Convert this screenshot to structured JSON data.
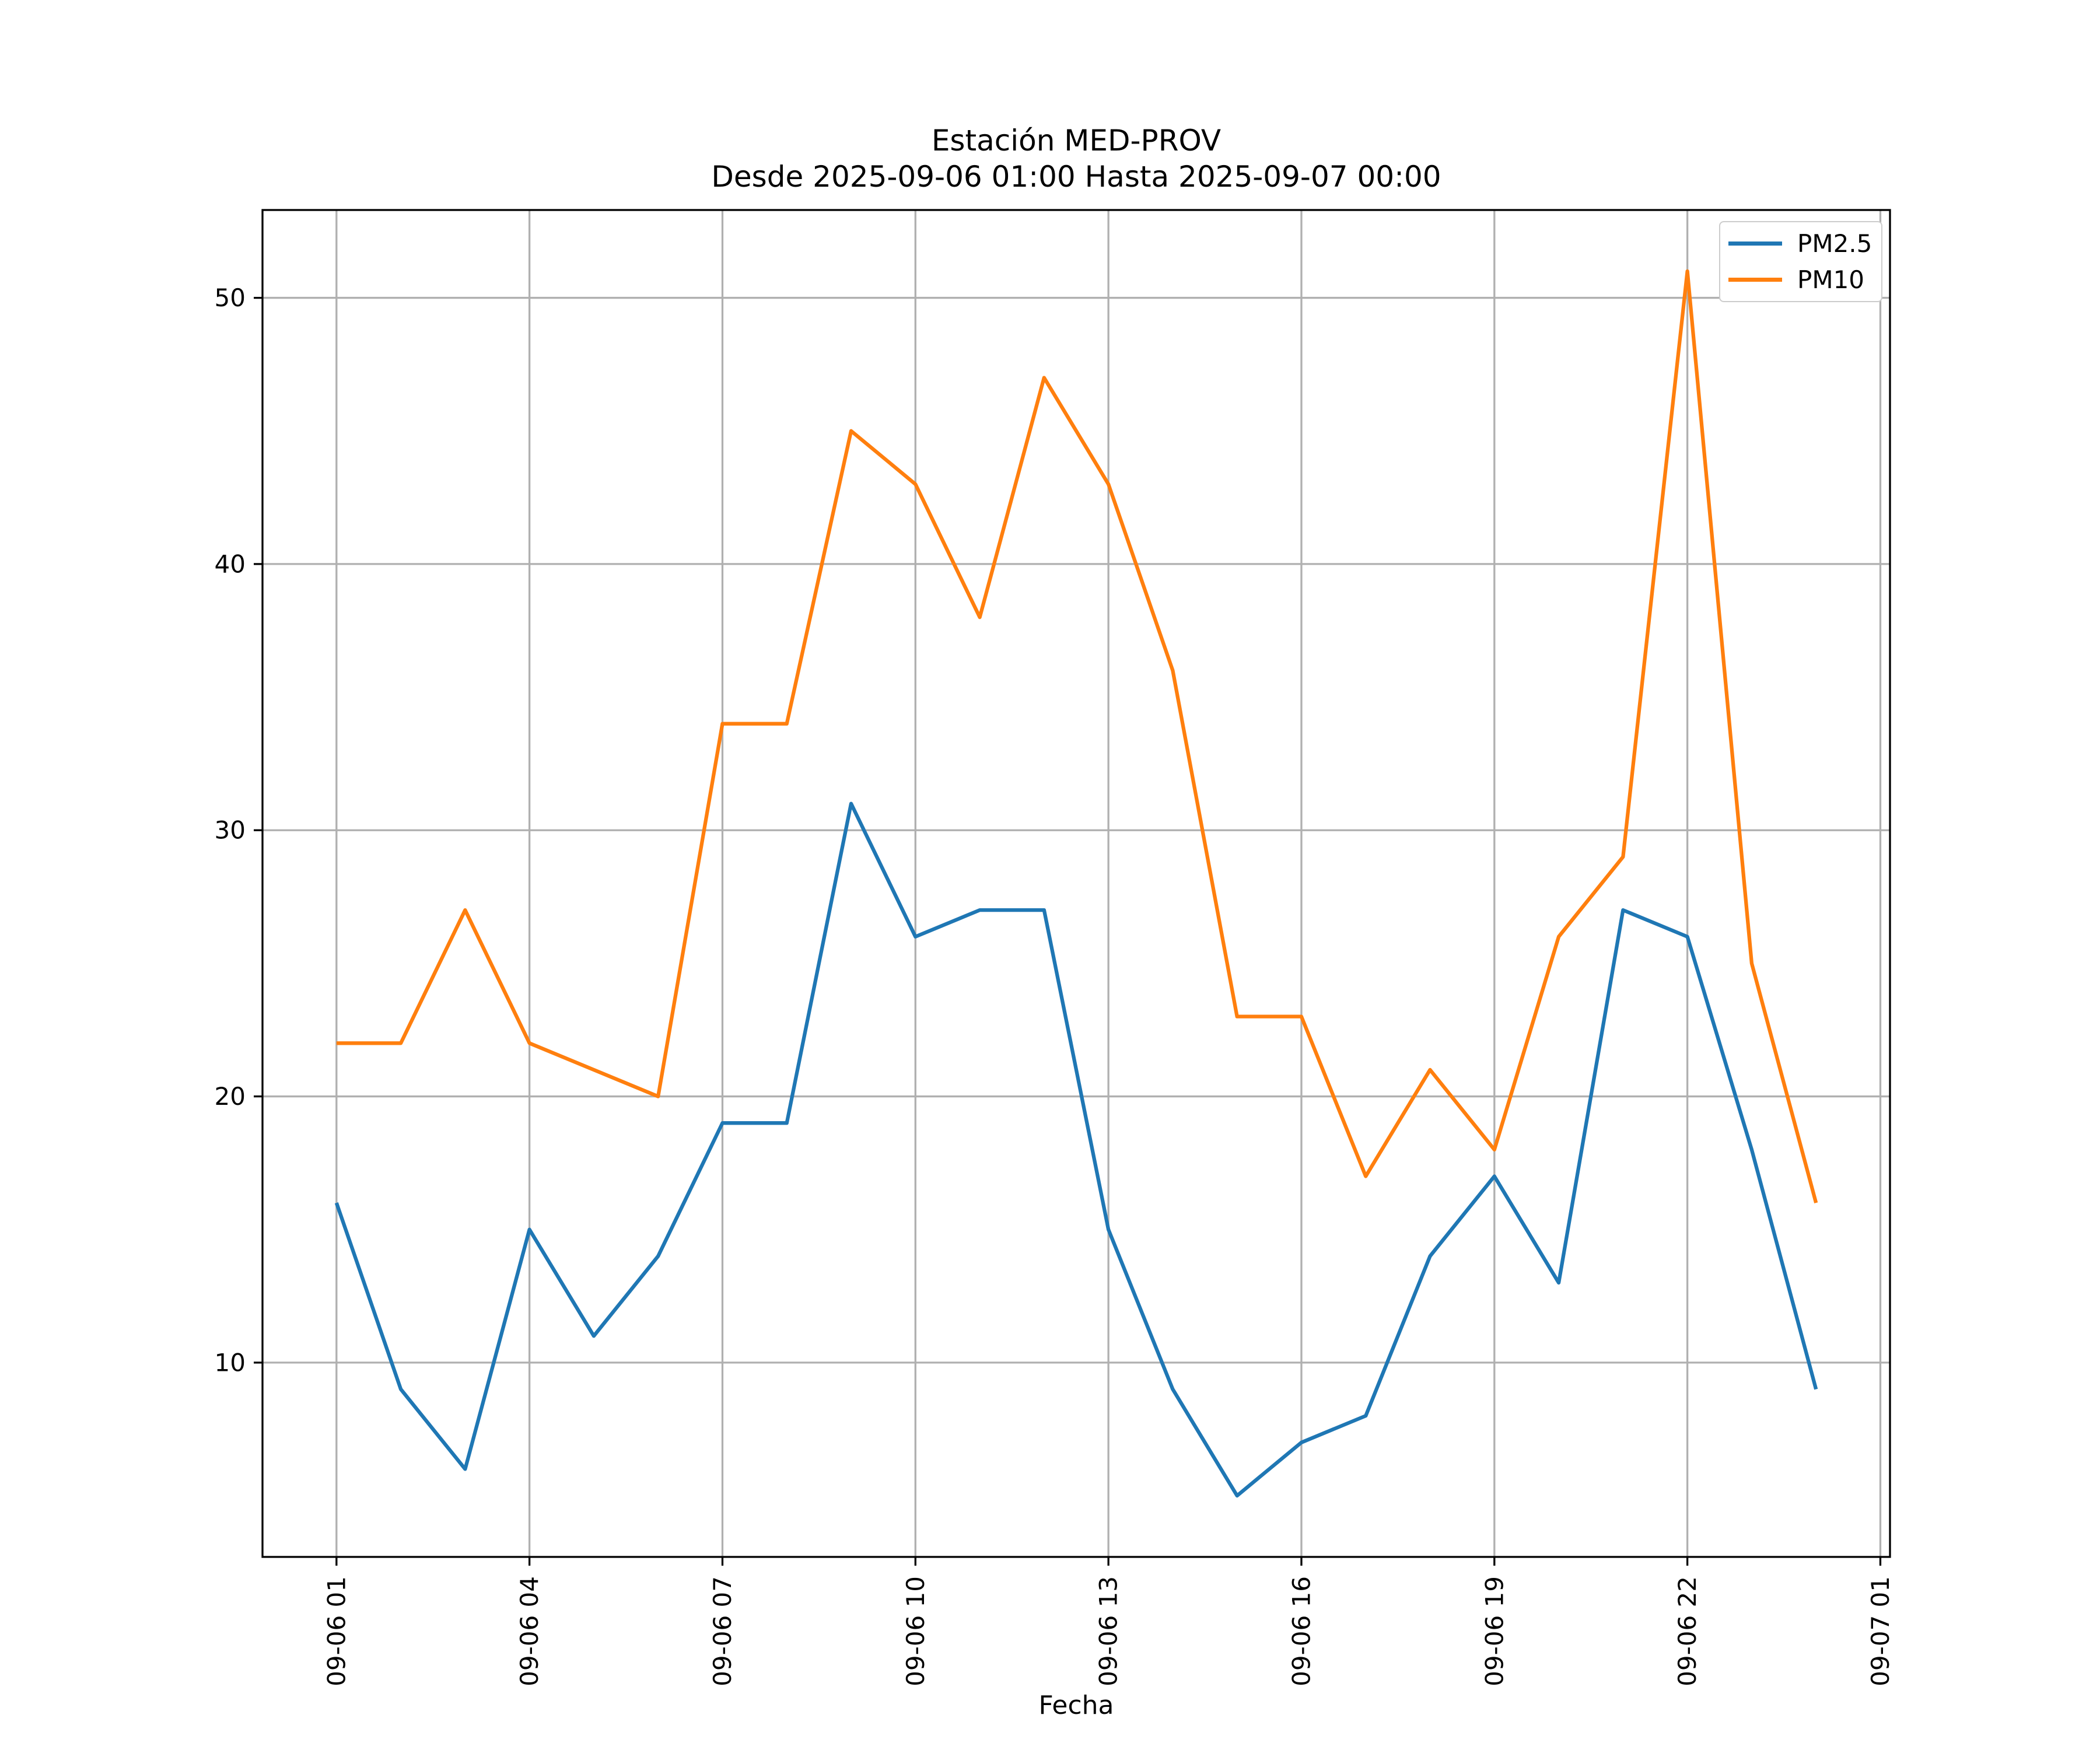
{
  "figure": {
    "background": "#ffffff",
    "text_color": "#000000"
  },
  "chart_data": {
    "type": "line",
    "title": "Estación MED-PROV",
    "subtitle": "Desde 2025-09-06 01:00 Hasta 2025-09-07 00:00",
    "xlabel": "Fecha",
    "ylabel": "",
    "x_hours": [
      1,
      2,
      3,
      4,
      5,
      6,
      7,
      8,
      9,
      10,
      11,
      12,
      13,
      14,
      15,
      16,
      17,
      18,
      19,
      20,
      21,
      22,
      23,
      24
    ],
    "series": [
      {
        "name": "PM2.5",
        "color": "#1f77b4",
        "values": [
          16,
          9,
          6,
          15,
          11,
          14,
          19,
          19,
          31,
          26,
          27,
          27,
          15,
          9,
          5,
          7,
          8,
          14,
          17,
          13,
          27,
          26,
          18,
          9
        ]
      },
      {
        "name": "PM10",
        "color": "#ff7f0e",
        "values": [
          22,
          22,
          27,
          22,
          21,
          20,
          34,
          34,
          45,
          43,
          38,
          47,
          43,
          36,
          23,
          23,
          17,
          21,
          18,
          26,
          29,
          51,
          25,
          16
        ]
      }
    ],
    "x_tick_hours": [
      1,
      4,
      7,
      10,
      13,
      16,
      19,
      22,
      25
    ],
    "x_tick_labels": [
      "09-06 01",
      "09-06 04",
      "09-06 07",
      "09-06 10",
      "09-06 13",
      "09-06 16",
      "09-06 19",
      "09-06 22",
      "09-07 01"
    ],
    "y_ticks": [
      10,
      20,
      30,
      40,
      50
    ],
    "xlim": [
      -0.15,
      25.15
    ],
    "ylim": [
      2.7,
      53.3
    ],
    "grid": true,
    "grid_color": "#b0b0b0",
    "spine_color": "#000000",
    "legend_position": "upper right"
  },
  "legend": {
    "items": [
      {
        "label": "PM2.5",
        "color": "#1f77b4"
      },
      {
        "label": "PM10",
        "color": "#ff7f0e"
      }
    ]
  }
}
